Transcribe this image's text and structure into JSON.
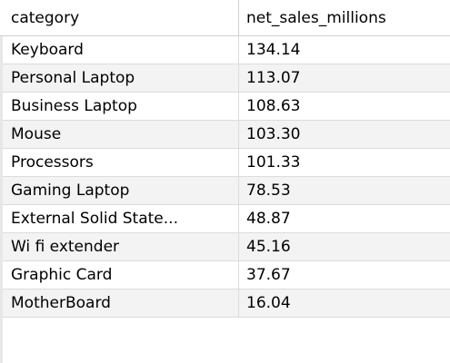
{
  "columns": [
    "category",
    "net_sales_millions"
  ],
  "rows": [
    {
      "category": "Keyboard",
      "net_sales_millions": "134.14"
    },
    {
      "category": "Personal Laptop",
      "net_sales_millions": "113.07"
    },
    {
      "category": "Business Laptop",
      "net_sales_millions": "108.63"
    },
    {
      "category": "Mouse",
      "net_sales_millions": "103.30"
    },
    {
      "category": "Processors",
      "net_sales_millions": "101.33"
    },
    {
      "category": "Gaming Laptop",
      "net_sales_millions": "78.53"
    },
    {
      "category": "External Solid State...",
      "net_sales_millions": "48.87"
    },
    {
      "category": "Wi fi extender",
      "net_sales_millions": "45.16"
    },
    {
      "category": "Graphic Card",
      "net_sales_millions": "37.67"
    },
    {
      "category": "MotherBoard",
      "net_sales_millions": "16.04"
    }
  ]
}
